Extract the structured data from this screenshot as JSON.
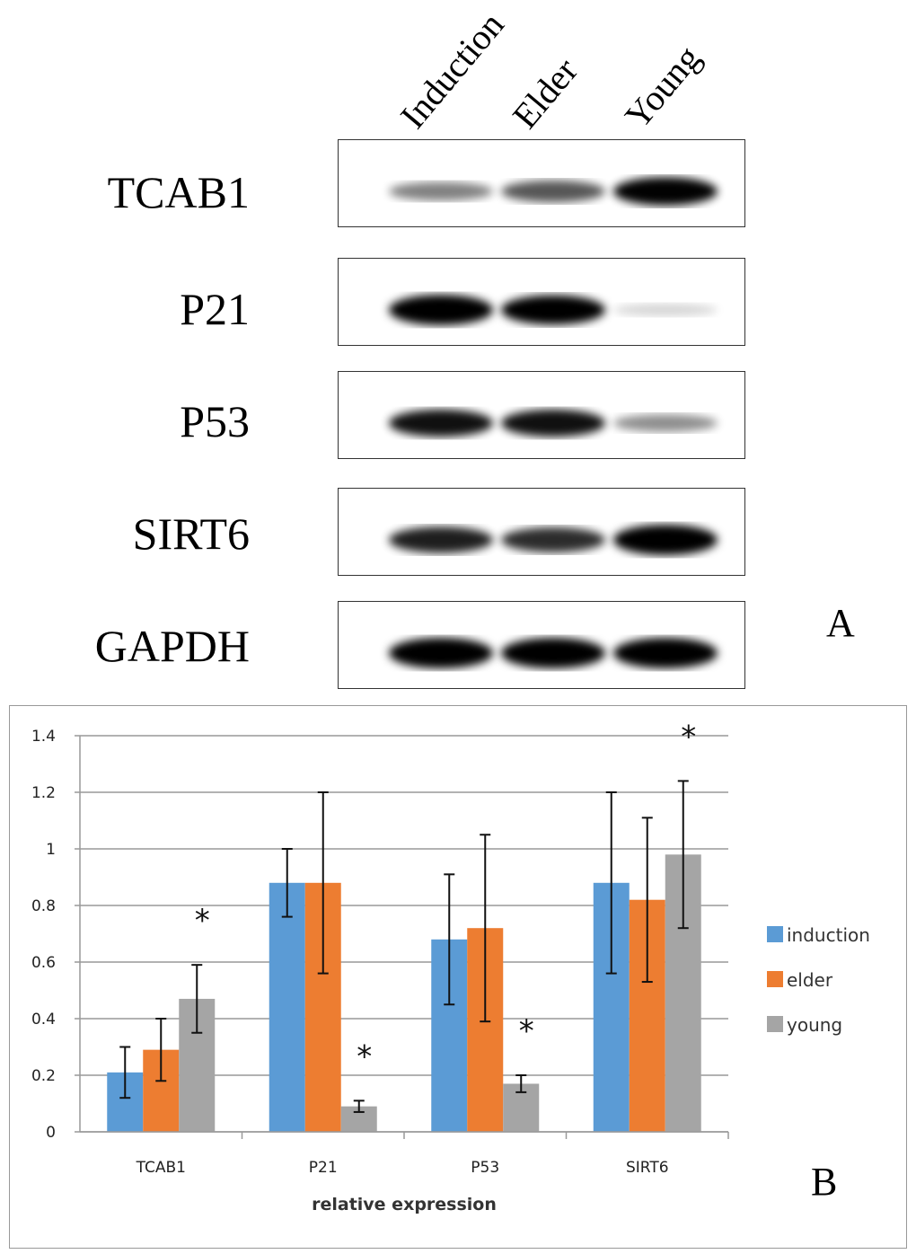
{
  "blot": {
    "lanes": [
      "Induction",
      "Elder",
      "Young"
    ],
    "proteins": [
      {
        "name": "TCAB1",
        "intensity": [
          0.45,
          0.6,
          0.9
        ]
      },
      {
        "name": "P21",
        "intensity": [
          1.0,
          0.95,
          0.15
        ]
      },
      {
        "name": "P53",
        "intensity": [
          0.85,
          0.85,
          0.4
        ]
      },
      {
        "name": "SIRT6",
        "intensity": [
          0.8,
          0.75,
          1.0
        ]
      },
      {
        "name": "GAPDH",
        "intensity": [
          1.0,
          1.0,
          1.0
        ]
      }
    ],
    "panel_label": "A"
  },
  "chart_data": {
    "type": "bar",
    "categories": [
      "TCAB1",
      "P21",
      "P53",
      "SIRT6"
    ],
    "xlabel": "relative expression",
    "ylabel": "",
    "ylim": [
      0,
      1.4
    ],
    "yticks": [
      "0",
      "0.2",
      "0.4",
      "0.6",
      "0.8",
      "1",
      "1.2",
      "1.4"
    ],
    "grid": true,
    "legend": "right",
    "series": [
      {
        "name": "induction",
        "color": "#5B9BD5",
        "values": [
          0.21,
          0.88,
          0.68,
          0.88
        ],
        "errors": [
          0.09,
          0.12,
          0.23,
          0.32
        ]
      },
      {
        "name": "elder",
        "color": "#ED7D31",
        "values": [
          0.29,
          0.88,
          0.72,
          0.82
        ],
        "errors": [
          0.11,
          0.32,
          0.33,
          0.29
        ]
      },
      {
        "name": "young",
        "color": "#A5A5A5",
        "values": [
          0.47,
          0.09,
          0.17,
          0.98
        ],
        "errors": [
          0.12,
          0.02,
          0.03,
          0.26
        ]
      }
    ],
    "significance": {
      "marker": "*",
      "series": "young",
      "categories": [
        "TCAB1",
        "P21",
        "P53",
        "SIRT6"
      ]
    },
    "panel_label": "B"
  }
}
